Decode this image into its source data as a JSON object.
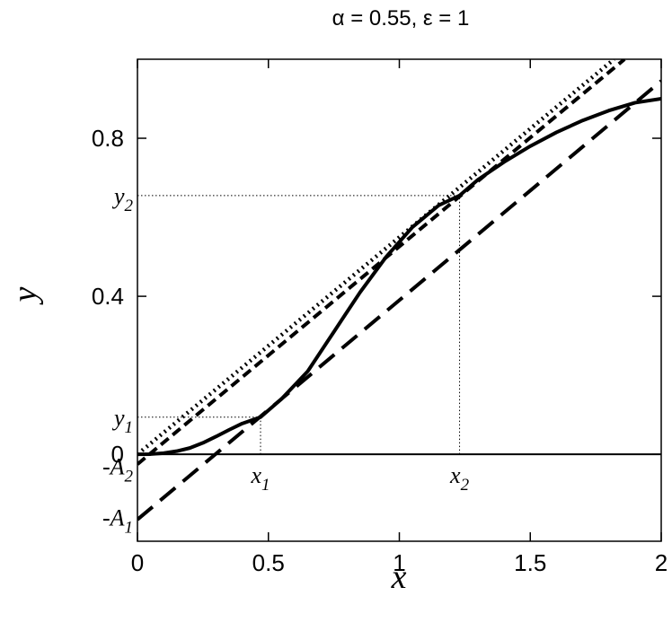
{
  "chart_data": {
    "type": "line",
    "title": "α = 0.55, ε = 1",
    "xlabel": "x",
    "ylabel": "y",
    "xlim": [
      0,
      2
    ],
    "ylim": [
      -0.22,
      1.0
    ],
    "grid": false,
    "legend": "none",
    "x_ticks": [
      {
        "value": 0,
        "label": "0"
      },
      {
        "value": 0.5,
        "label": "0.5"
      },
      {
        "value": 1,
        "label": "1"
      },
      {
        "value": 1.5,
        "label": "1.5"
      },
      {
        "value": 2,
        "label": "2"
      }
    ],
    "y_ticks": [
      {
        "value": 0,
        "label": "0"
      },
      {
        "value": 0.4,
        "label": "0.4"
      },
      {
        "value": 0.8,
        "label": "0.8"
      }
    ],
    "y_special_labels": [
      {
        "value": 0.094,
        "base": "y",
        "sub": "1"
      },
      {
        "value": 0.655,
        "base": "y",
        "sub": "2"
      },
      {
        "value": -0.03,
        "base": "-A",
        "sub": "2"
      },
      {
        "value": -0.16,
        "base": "-A",
        "sub": "1"
      }
    ],
    "x_special_labels": [
      {
        "value": 0.47,
        "base": "x",
        "sub": "1"
      },
      {
        "value": 1.23,
        "base": "x",
        "sub": "2"
      }
    ],
    "series": [
      {
        "style": "solid",
        "x": [
          0,
          0.05,
          0.1,
          0.15,
          0.2,
          0.25,
          0.3,
          0.35,
          0.4,
          0.47,
          0.55,
          0.65,
          0.75,
          0.85,
          0.95,
          1.05,
          1.15,
          1.23,
          1.3,
          1.4,
          1.5,
          1.6,
          1.7,
          1.8,
          1.9,
          2.0
        ],
        "y": [
          0,
          0.0005,
          0.003,
          0.008,
          0.016,
          0.029,
          0.045,
          0.062,
          0.078,
          0.094,
          0.14,
          0.21,
          0.31,
          0.41,
          0.5,
          0.575,
          0.63,
          0.655,
          0.695,
          0.74,
          0.78,
          0.815,
          0.845,
          0.87,
          0.89,
          0.9
        ]
      },
      {
        "style": "long-dash",
        "x": [
          0,
          2
        ],
        "y": [
          -0.165,
          0.945
        ]
      },
      {
        "style": "dash",
        "x": [
          0,
          1.86
        ],
        "y": [
          -0.025,
          1.0
        ]
      },
      {
        "style": "dotted",
        "x": [
          0,
          1.82
        ],
        "y": [
          0.0,
          1.0
        ]
      },
      {
        "style": "solid-thin",
        "x": [
          0,
          2
        ],
        "y": [
          0,
          0
        ]
      }
    ],
    "guides": [
      {
        "x": [
          0,
          0.47
        ],
        "y": [
          0.094,
          0.094
        ]
      },
      {
        "x": [
          0.47,
          0.47
        ],
        "y": [
          0,
          0.094
        ]
      },
      {
        "x": [
          0,
          1.23
        ],
        "y": [
          0.655,
          0.655
        ]
      },
      {
        "x": [
          1.23,
          1.23
        ],
        "y": [
          0,
          0.655
        ]
      }
    ]
  }
}
